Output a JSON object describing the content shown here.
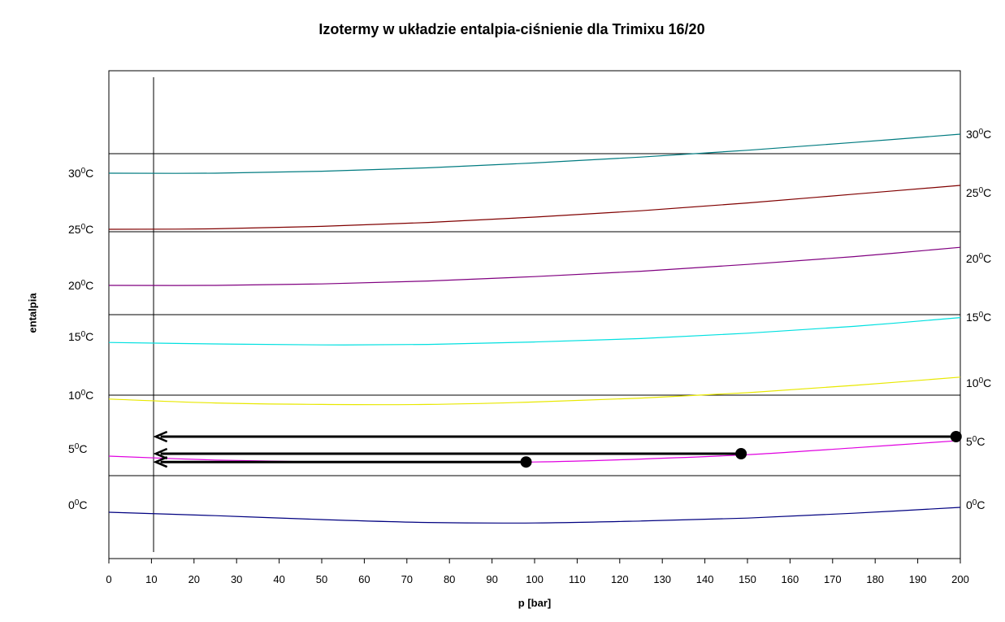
{
  "chart_data": {
    "type": "line",
    "title": "Izotermy w układzie entalpia-ciśnienie dla Trimixu 16/20",
    "xlabel": "p [bar]",
    "ylabel": "entalpia",
    "xlim": [
      0,
      200
    ],
    "ylim": [
      0,
      100
    ],
    "xticks": [
      "0",
      "10",
      "20",
      "30",
      "40",
      "50",
      "60",
      "70",
      "80",
      "90",
      "100",
      "110",
      "120",
      "130",
      "140",
      "150",
      "160",
      "170",
      "180",
      "190",
      "200"
    ],
    "degree_sign": "0",
    "unit": "C",
    "vertical_line_x": 10.5,
    "horizontal_lines": [
      83,
      67,
      50,
      33.5,
      17
    ],
    "left_labels": [
      {
        "num": "30",
        "y": 79
      },
      {
        "num": "25",
        "y": 67.5
      },
      {
        "num": "20",
        "y": 56
      },
      {
        "num": "15",
        "y": 45.5
      },
      {
        "num": "10",
        "y": 33.5
      },
      {
        "num": "5",
        "y": 22.5
      },
      {
        "num": "0",
        "y": 11
      }
    ],
    "right_labels": [
      {
        "num": "30",
        "y": 87
      },
      {
        "num": "25",
        "y": 75
      },
      {
        "num": "20",
        "y": 61.5
      },
      {
        "num": "15",
        "y": 49.5
      },
      {
        "num": "10",
        "y": 36
      },
      {
        "num": "5",
        "y": 24
      },
      {
        "num": "0",
        "y": 11
      }
    ],
    "series": [
      {
        "color": "#007b80",
        "x": [
          0,
          25,
          50,
          75,
          100,
          125,
          150,
          175,
          200
        ],
        "y": [
          79,
          79,
          79.4,
          80.1,
          81.1,
          82.3,
          83.7,
          85.3,
          87
        ]
      },
      {
        "color": "#800000",
        "x": [
          0,
          25,
          50,
          75,
          100,
          125,
          150,
          175,
          200
        ],
        "y": [
          67.5,
          67.6,
          68.1,
          68.9,
          70,
          71.3,
          72.9,
          74.7,
          76.5
        ]
      },
      {
        "color": "#800080",
        "x": [
          0,
          25,
          50,
          75,
          100,
          125,
          150,
          175,
          200
        ],
        "y": [
          56,
          56,
          56.3,
          56.9,
          57.8,
          58.9,
          60.3,
          61.9,
          63.8
        ]
      },
      {
        "color": "#00e0e0",
        "x": [
          0,
          25,
          50,
          75,
          100,
          125,
          150,
          175,
          200
        ],
        "y": [
          44.3,
          44,
          43.8,
          43.9,
          44.4,
          45.1,
          46.2,
          47.6,
          49.4
        ]
      },
      {
        "color": "#e8e800",
        "x": [
          0,
          25,
          50,
          75,
          100,
          125,
          150,
          175,
          200
        ],
        "y": [
          32.7,
          31.9,
          31.6,
          31.6,
          32.1,
          32.9,
          34,
          35.5,
          37.2
        ]
      },
      {
        "color": "#e000e0",
        "x": [
          0,
          25,
          50,
          75,
          100,
          125,
          150,
          175,
          200
        ],
        "y": [
          21,
          20.2,
          19.8,
          19.7,
          19.8,
          20.4,
          21.3,
          22.7,
          24.2
        ]
      },
      {
        "color": "#000080",
        "x": [
          0,
          25,
          50,
          75,
          100,
          125,
          150,
          175,
          200
        ],
        "y": [
          9.5,
          8.8,
          8,
          7.4,
          7.3,
          7.7,
          8.3,
          9.3,
          10.5
        ]
      }
    ],
    "arrows": [
      {
        "x_from": 199,
        "x_to": 11,
        "y": 25
      },
      {
        "x_from": 148.5,
        "x_to": 11,
        "y": 21.5
      },
      {
        "x_from": 98,
        "x_to": 11,
        "y": 19.8
      }
    ],
    "points": [
      {
        "x": 199,
        "y": 25
      },
      {
        "x": 148.5,
        "y": 21.5
      },
      {
        "x": 98,
        "y": 19.8
      }
    ]
  }
}
